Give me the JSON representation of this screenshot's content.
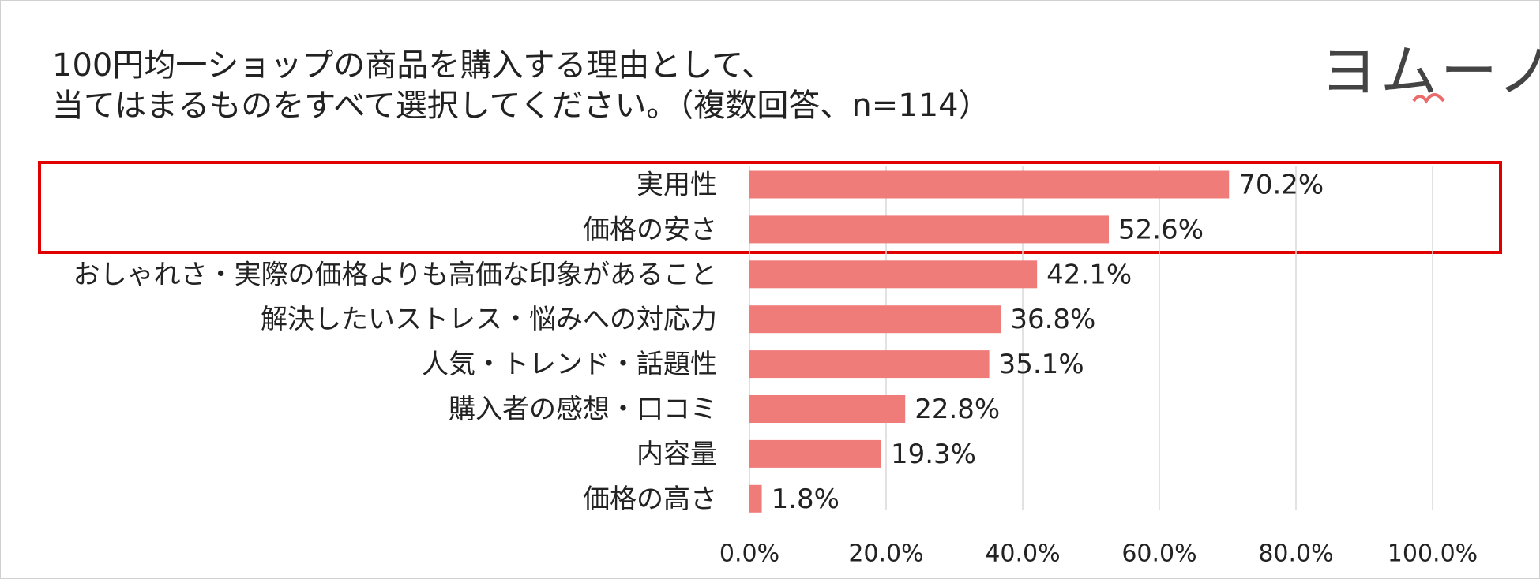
{
  "chart_data": {
    "type": "bar",
    "orientation": "horizontal",
    "title": [
      "100円均一ショップの商品を購入する理由として、",
      "当てはまるものをすべて選択してください。（複数回答、n=114）"
    ],
    "logo": "ヨムーノ",
    "categories": [
      "実用性",
      "価格の安さ",
      "おしゃれさ・実際の価格よりも高価な印象があること",
      "解決したいストレス・悩みへの対応力",
      "人気・トレンド・話題性",
      "購入者の感想・口コミ",
      "内容量",
      "価格の高さ"
    ],
    "values": [
      70.2,
      52.6,
      42.1,
      36.8,
      35.1,
      22.8,
      19.3,
      1.8
    ],
    "value_labels": [
      "70.2%",
      "52.6%",
      "42.1%",
      "36.8%",
      "35.1%",
      "22.8%",
      "19.3%",
      "1.8%"
    ],
    "color": "#f07c7a",
    "xlim": [
      0,
      100
    ],
    "xticks": [
      {
        "value": 0,
        "label": "0.0%"
      },
      {
        "value": 20,
        "label": "20.0%"
      },
      {
        "value": 40,
        "label": "40.0%"
      },
      {
        "value": 60,
        "label": "60.0%"
      },
      {
        "value": 80,
        "label": "80.0%"
      },
      {
        "value": 100,
        "label": "100.0%"
      }
    ],
    "grid": true
  }
}
